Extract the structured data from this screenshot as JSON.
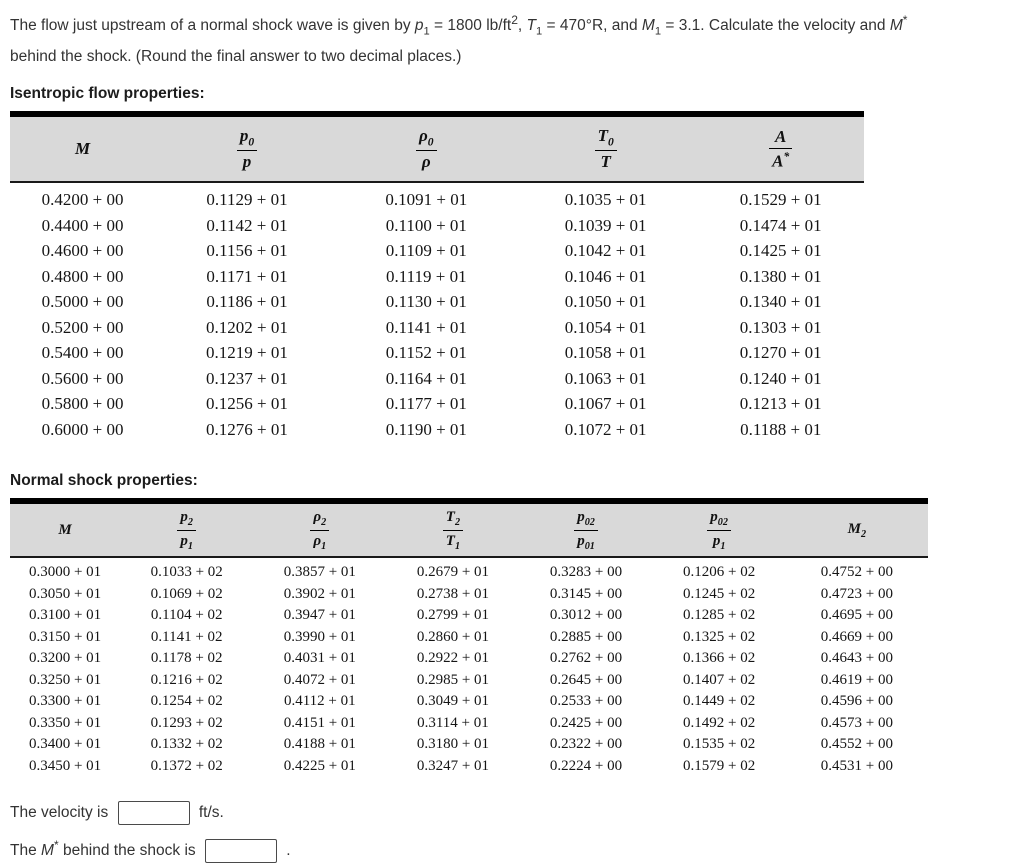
{
  "problem": {
    "line1": [
      {
        "t": "The flow just upstream of a normal shock wave is given by "
      },
      {
        "t": "p",
        "s": "i"
      },
      {
        "t": "1",
        "s": "sub"
      },
      {
        "t": " = 1800 lb/ft"
      },
      {
        "t": "2",
        "s": "sup"
      },
      {
        "t": ", "
      },
      {
        "t": "T",
        "s": "i"
      },
      {
        "t": "1",
        "s": "sub"
      },
      {
        "t": " = 470°R, and "
      },
      {
        "t": "M",
        "s": "i"
      },
      {
        "t": "1",
        "s": "sub"
      },
      {
        "t": " = 3.1. Calculate the velocity and "
      },
      {
        "t": "M",
        "s": "i"
      },
      {
        "t": "*",
        "s": "sup"
      }
    ],
    "line2": [
      {
        "t": "behind the shock. (Round the final answer to two decimal places.)"
      }
    ]
  },
  "isentropic": {
    "heading": "Isentropic flow properties:",
    "columns": [
      {
        "name": "mach",
        "base": "M"
      },
      {
        "name": "p0-over-p",
        "top": "p",
        "top_sub": "0",
        "bot": "p"
      },
      {
        "name": "rho0-over-rho",
        "top": "ρ",
        "top_sub": "0",
        "bot": "ρ"
      },
      {
        "name": "t0-over-t",
        "top": "T",
        "top_sub": "0",
        "bot": "T"
      },
      {
        "name": "a-over-astar",
        "top": "A",
        "bot": "A",
        "bot_sup": "*"
      }
    ],
    "rows": [
      [
        "0.4200 + 00",
        "0.1129 + 01",
        "0.1091 + 01",
        "0.1035 + 01",
        "0.1529 + 01"
      ],
      [
        "0.4400 + 00",
        "0.1142 + 01",
        "0.1100 + 01",
        "0.1039 + 01",
        "0.1474 + 01"
      ],
      [
        "0.4600 + 00",
        "0.1156 + 01",
        "0.1109 + 01",
        "0.1042 + 01",
        "0.1425 + 01"
      ],
      [
        "0.4800 + 00",
        "0.1171 + 01",
        "0.1119 + 01",
        "0.1046 + 01",
        "0.1380 + 01"
      ],
      [
        "0.5000 + 00",
        "0.1186 + 01",
        "0.1130 + 01",
        "0.1050 + 01",
        "0.1340 + 01"
      ],
      [
        "0.5200 + 00",
        "0.1202 + 01",
        "0.1141 + 01",
        "0.1054 + 01",
        "0.1303 + 01"
      ],
      [
        "0.5400 + 00",
        "0.1219 + 01",
        "0.1152 + 01",
        "0.1058 + 01",
        "0.1270 + 01"
      ],
      [
        "0.5600 + 00",
        "0.1237 + 01",
        "0.1164 + 01",
        "0.1063 + 01",
        "0.1240 + 01"
      ],
      [
        "0.5800 + 00",
        "0.1256 + 01",
        "0.1177 + 01",
        "0.1067 + 01",
        "0.1213 + 01"
      ],
      [
        "0.6000 + 00",
        "0.1276 + 01",
        "0.1190 + 01",
        "0.1072 + 01",
        "0.1188 + 01"
      ]
    ]
  },
  "normal_shock": {
    "heading": "Normal shock properties:",
    "columns": [
      {
        "name": "mach",
        "base": "M"
      },
      {
        "name": "p2-over-p1",
        "top": "p",
        "top_sub": "2",
        "bot": "p",
        "bot_sub": "1"
      },
      {
        "name": "rho2-over-rho1",
        "top": "ρ",
        "top_sub": "2",
        "bot": "ρ",
        "bot_sub": "1"
      },
      {
        "name": "t2-over-t1",
        "top": "T",
        "top_sub": "2",
        "bot": "T",
        "bot_sub": "1"
      },
      {
        "name": "p02-over-p01",
        "top": "p",
        "top_sub": "02",
        "bot": "p",
        "bot_sub": "01"
      },
      {
        "name": "p02-over-p1",
        "top": "p",
        "top_sub": "02",
        "bot": "p",
        "bot_sub": "1"
      },
      {
        "name": "mach2",
        "base": "M",
        "base_sub": "2"
      }
    ],
    "rows": [
      [
        "0.3000 + 01",
        "0.1033 + 02",
        "0.3857 + 01",
        "0.2679 + 01",
        "0.3283 + 00",
        "0.1206 + 02",
        "0.4752 + 00"
      ],
      [
        "0.3050 + 01",
        "0.1069 + 02",
        "0.3902 + 01",
        "0.2738 + 01",
        "0.3145 + 00",
        "0.1245 + 02",
        "0.4723 + 00"
      ],
      [
        "0.3100 + 01",
        "0.1104 + 02",
        "0.3947 + 01",
        "0.2799 + 01",
        "0.3012 + 00",
        "0.1285 + 02",
        "0.4695 + 00"
      ],
      [
        "0.3150 + 01",
        "0.1141 + 02",
        "0.3990 + 01",
        "0.2860 + 01",
        "0.2885 + 00",
        "0.1325 + 02",
        "0.4669 + 00"
      ],
      [
        "0.3200 + 01",
        "0.1178 + 02",
        "0.4031 + 01",
        "0.2922 + 01",
        "0.2762 + 00",
        "0.1366 + 02",
        "0.4643 + 00"
      ],
      [
        "0.3250 + 01",
        "0.1216 + 02",
        "0.4072 + 01",
        "0.2985 + 01",
        "0.2645 + 00",
        "0.1407 + 02",
        "0.4619 + 00"
      ],
      [
        "0.3300 + 01",
        "0.1254 + 02",
        "0.4112 + 01",
        "0.3049 + 01",
        "0.2533 + 00",
        "0.1449 + 02",
        "0.4596 + 00"
      ],
      [
        "0.3350 + 01",
        "0.1293 + 02",
        "0.4151 + 01",
        "0.3114 + 01",
        "0.2425 + 00",
        "0.1492 + 02",
        "0.4573 + 00"
      ],
      [
        "0.3400 + 01",
        "0.1332 + 02",
        "0.4188 + 01",
        "0.3180 + 01",
        "0.2322 + 00",
        "0.1535 + 02",
        "0.4552 + 00"
      ],
      [
        "0.3450 + 01",
        "0.1372 + 02",
        "0.4225 + 01",
        "0.3247 + 01",
        "0.2224 + 00",
        "0.1579 + 02",
        "0.4531 + 00"
      ]
    ]
  },
  "answers": {
    "velocity": {
      "prefix": "The velocity is",
      "suffix": "ft/s.",
      "value": "",
      "placeholder": ""
    },
    "mstar": {
      "the": "The ",
      "m": "M",
      "star": "*",
      "rest": " behind the shock is",
      "suffix": ".",
      "value": "",
      "placeholder": ""
    }
  },
  "colors": {
    "header_bg": "#d9d9d9",
    "rule": "#000000",
    "text": "#2e2e2e"
  }
}
